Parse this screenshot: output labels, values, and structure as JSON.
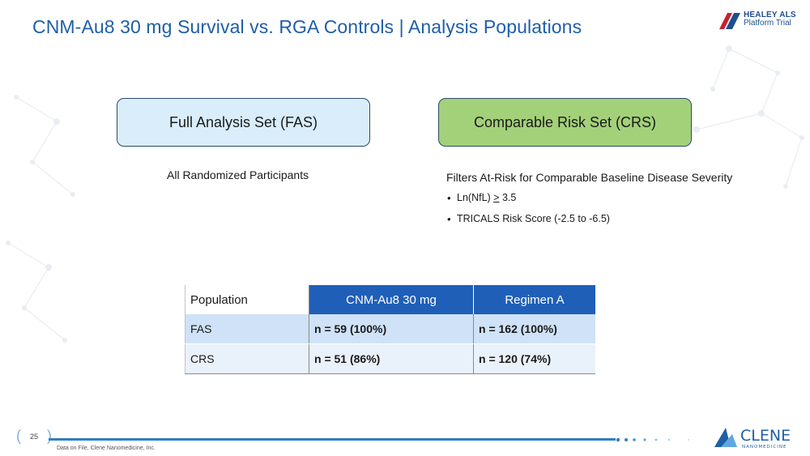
{
  "header": {
    "title": "CNM-Au8 30 mg Survival vs. RGA Controls | Analysis Populations",
    "logo_line1": "HEALEY ALS",
    "logo_line2": "Platform Trial"
  },
  "fas": {
    "box_label": "Full Analysis Set (FAS)",
    "description": "All Randomized Participants"
  },
  "crs": {
    "box_label": "Comparable Risk Set (CRS)",
    "description": "Filters At-Risk for Comparable Baseline Disease Severity",
    "bullet1_prefix": "Ln(NfL) ",
    "bullet1_symbol": ">",
    "bullet1_suffix": " 3.5",
    "bullet2": "TRICALS Risk Score (-2.5 to -6.5)"
  },
  "table": {
    "headers": [
      "Population",
      "CNM-Au8 30 mg",
      "Regimen A"
    ],
    "rows": [
      [
        "FAS",
        "n = 59 (100%)",
        "n = 162 (100%)"
      ],
      [
        "CRS",
        "n = 51 (86%)",
        "n = 120 (74%)"
      ]
    ]
  },
  "footer": {
    "page_number": "25",
    "footnote": "Data on File, Clene Nanomedicine, Inc.",
    "clene_name": "CLENE",
    "clene_tagline": "NANOMEDICINE"
  },
  "colors": {
    "title": "#1f5fa8",
    "fas_fill": "#d9edfb",
    "crs_fill": "#a3d179",
    "table_header": "#1f5fb8"
  }
}
